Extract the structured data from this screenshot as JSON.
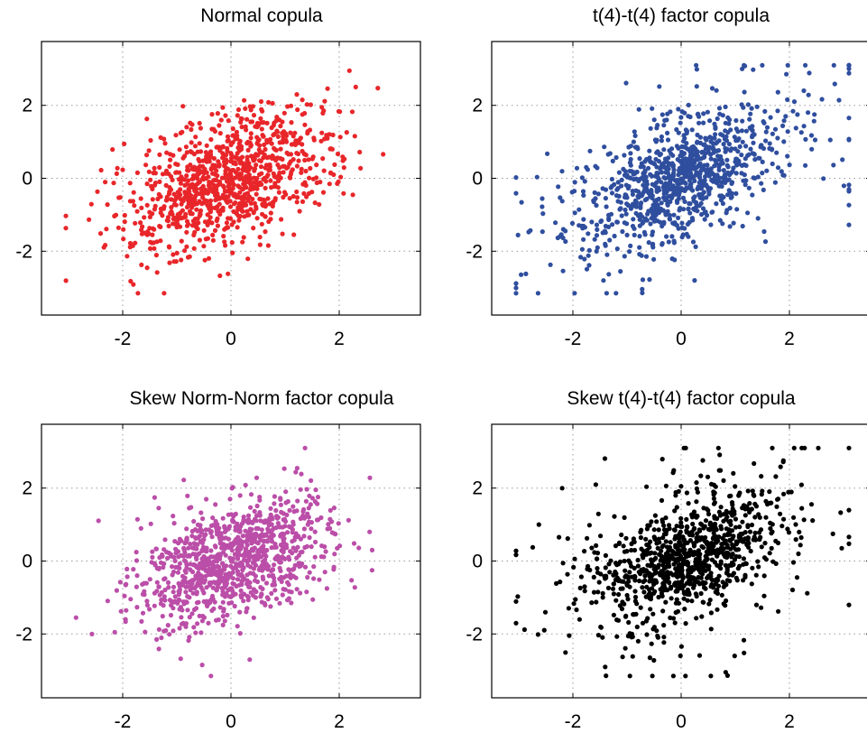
{
  "chart_data": [
    {
      "type": "scatter",
      "title": "Normal copula",
      "xlabel": "",
      "ylabel": "",
      "xlim": [
        -3.5,
        3.5
      ],
      "ylim": [
        -3.75,
        3.75
      ],
      "xticks": [
        -2,
        0,
        2
      ],
      "yticks": [
        -2,
        0,
        2
      ],
      "tick_labels": {
        "x": [
          "-2",
          "0",
          "2"
        ],
        "y": [
          "-2",
          "0",
          "2"
        ]
      },
      "grid": true,
      "color": "#e8262a",
      "n_points": 1000,
      "correlation": 0.5,
      "series": [
        {
          "x": [],
          "y": []
        }
      ]
    },
    {
      "type": "scatter",
      "title": "t(4)-t(4) factor copula",
      "xlabel": "",
      "ylabel": "",
      "xlim": [
        -3.5,
        3.5
      ],
      "ylim": [
        -3.75,
        3.75
      ],
      "xticks": [
        -2,
        0,
        2
      ],
      "yticks": [
        -2,
        0,
        2
      ],
      "tick_labels": {
        "x": [
          "-2",
          "0",
          "2"
        ],
        "y": [
          "-2",
          "0",
          "2"
        ]
      },
      "grid": true,
      "color": "#2f4e9e",
      "n_points": 1000,
      "correlation": 0.5,
      "series": [
        {
          "x": [],
          "y": []
        }
      ]
    },
    {
      "type": "scatter",
      "title": "Skew Norm-Norm factor copula",
      "xlabel": "",
      "ylabel": "",
      "xlim": [
        -3.5,
        3.5
      ],
      "ylim": [
        -3.75,
        3.75
      ],
      "xticks": [
        -2,
        0,
        2
      ],
      "yticks": [
        -2,
        0,
        2
      ],
      "tick_labels": {
        "x": [
          "-2",
          "0",
          "2"
        ],
        "y": [
          "-2",
          "0",
          "2"
        ]
      },
      "grid": true,
      "color": "#bb4ea8",
      "n_points": 1000,
      "correlation": 0.5,
      "series": [
        {
          "x": [],
          "y": []
        }
      ]
    },
    {
      "type": "scatter",
      "title": "Skew t(4)-t(4) factor copula",
      "xlabel": "",
      "ylabel": "",
      "xlim": [
        -3.5,
        3.5
      ],
      "ylim": [
        -3.75,
        3.75
      ],
      "xticks": [
        -2,
        0,
        2
      ],
      "yticks": [
        -2,
        0,
        2
      ],
      "tick_labels": {
        "x": [
          "-2",
          "0",
          "2"
        ],
        "y": [
          "-2",
          "0",
          "2"
        ]
      },
      "grid": true,
      "color": "#000000",
      "n_points": 1000,
      "correlation": 0.5,
      "series": [
        {
          "x": [],
          "y": []
        }
      ]
    }
  ]
}
